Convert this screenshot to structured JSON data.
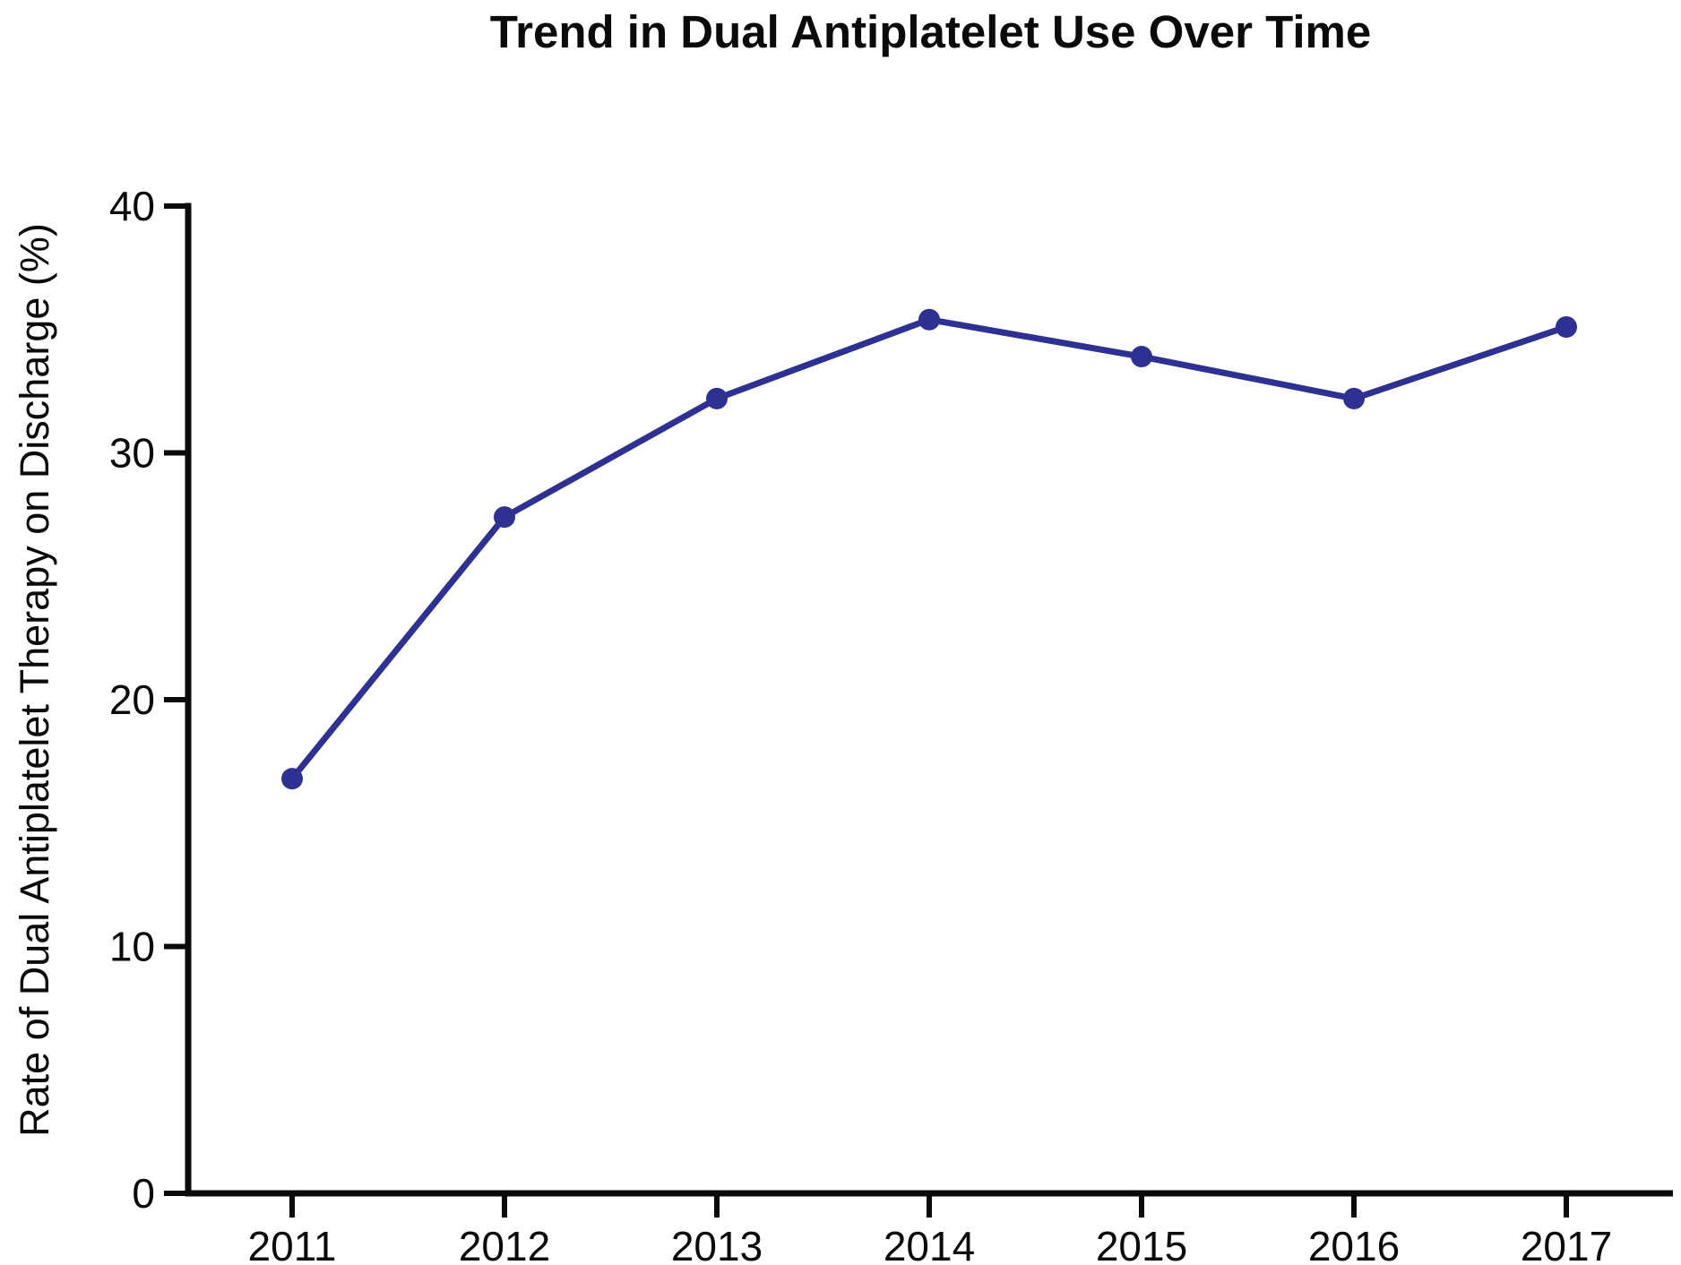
{
  "figure": {
    "title": "Trend in Dual Antiplatelet Use Over Time",
    "ylabel": "Rate of Dual Antiplatelet Therapy on Discharge (%)"
  },
  "chart_data": {
    "type": "line",
    "title": "Trend in Dual Antiplatelet Use Over Time",
    "xlabel": "",
    "ylabel": "Rate of Dual Antiplatelet Therapy on Discharge (%)",
    "categories": [
      "2011",
      "2012",
      "2013",
      "2014",
      "2015",
      "2016",
      "2017"
    ],
    "series": [
      {
        "name": "Rate of dual antiplatelet therapy on discharge",
        "values": [
          16.8,
          27.4,
          32.2,
          35.4,
          33.9,
          32.2,
          35.1
        ]
      }
    ],
    "ylim": [
      0,
      40
    ],
    "yticks": [
      0,
      10,
      20,
      30,
      40
    ],
    "grid": false,
    "legend_position": "none",
    "marker": "circle",
    "line_color": "#2e3192",
    "axis_color": "#0a0a0a"
  }
}
